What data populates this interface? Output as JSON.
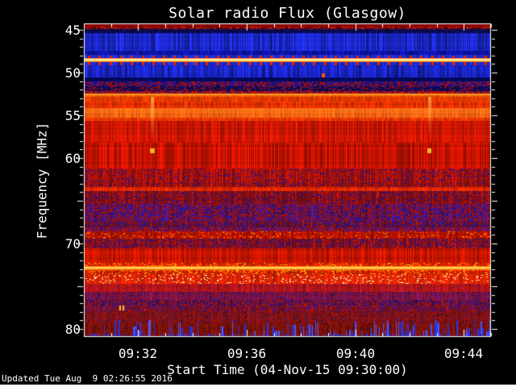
{
  "footer": "Updated Tue Aug  9 02:26:55 2016",
  "chart_data": {
    "type": "heatmap",
    "subtype": "radio-spectrogram",
    "title": "Solar radio Flux (Glasgow)",
    "x_axis": {
      "label": "Start Time (04-Nov-15 09:30:00)",
      "start": "09:30",
      "end": "09:45",
      "minutes_span": 15,
      "ticks": [
        {
          "label": "09:32",
          "t": 2
        },
        {
          "label": "09:36",
          "t": 6
        },
        {
          "label": "09:40",
          "t": 10
        },
        {
          "label": "09:44",
          "t": 14
        }
      ],
      "minor_step_min": 1,
      "major_ts": [
        2,
        6,
        10,
        14
      ]
    },
    "y_axis": {
      "label": "Frequency [MHz]",
      "freq_top": 44.25,
      "freq_bottom": 80.95,
      "labeled_ticks": [
        {
          "label": "45",
          "f": 45
        },
        {
          "label": "50",
          "f": 50
        },
        {
          "label": "55",
          "f": 55
        },
        {
          "label": "60",
          "f": 60
        },
        {
          "label": "70",
          "f": 70
        },
        {
          "label": "80",
          "f": 80
        }
      ],
      "major_step": 5,
      "minor_step": 1
    },
    "colors": {
      "background": "#000000",
      "axis": "#ffffff",
      "text": "#ffffff"
    },
    "seed": 1337,
    "bands": [
      {
        "f0": 44.25,
        "f1": 44.95,
        "c": "#6e0202",
        "n": 0.3,
        "sp": "#cc2200",
        "sd": 0.18
      },
      {
        "f0": 44.95,
        "f1": 45.35,
        "c": "#0a0a50",
        "n": 0.3
      },
      {
        "f0": 45.35,
        "f1": 47.45,
        "c": "#1c28d0",
        "n": 0.4,
        "rv": 0.18
      },
      {
        "f0": 47.45,
        "f1": 47.95,
        "c": "#0d14a8",
        "n": 0.35
      },
      {
        "f0": 47.95,
        "f1": 48.3,
        "c": "#1c28d0",
        "n": 0.35
      },
      {
        "f0": 48.3,
        "f1": 48.68,
        "c": "#ff8800",
        "n": 0.15
      },
      {
        "f0": 48.68,
        "f1": 49.15,
        "c": "#1c28d0",
        "n": 0.35
      },
      {
        "f0": 49.15,
        "f1": 50.55,
        "c": "#1a24c4",
        "n": 0.4,
        "rv": 0.18
      },
      {
        "f0": 50.55,
        "f1": 51.05,
        "c": "#000a60",
        "n": 0.3
      },
      {
        "f0": 51.05,
        "f1": 51.65,
        "c": "#1d0f80",
        "n": 0.3,
        "sp": "#b01000",
        "sd": 0.22
      },
      {
        "f0": 51.65,
        "f1": 52.15,
        "c": "#0c0a5a",
        "n": 0.3,
        "sp": "#b01000",
        "sd": 0.12
      },
      {
        "f0": 52.15,
        "f1": 52.45,
        "c": "#43105e",
        "n": 0.3,
        "sp": "#cc1100",
        "sd": 0.4
      },
      {
        "f0": 52.45,
        "f1": 52.8,
        "c": "#f06000",
        "n": 0.18
      },
      {
        "f0": 52.8,
        "f1": 53.4,
        "c": "#e83a00",
        "n": 0.2
      },
      {
        "f0": 53.4,
        "f1": 54.2,
        "c": "#dd2e00",
        "n": 0.22
      },
      {
        "f0": 54.2,
        "f1": 55.25,
        "c": "#ff6212",
        "n": 0.2,
        "rv": 0.15
      },
      {
        "f0": 55.25,
        "f1": 55.65,
        "c": "#e83600",
        "n": 0.22
      },
      {
        "f0": 55.65,
        "f1": 58.2,
        "c": "#cc1602",
        "n": 0.26,
        "rv": 0.12
      },
      {
        "f0": 58.2,
        "f1": 61.2,
        "c": "#c01200",
        "n": 0.3,
        "rv": 0.12
      },
      {
        "f0": 61.2,
        "f1": 63.4,
        "c": "#a81000",
        "n": 0.3,
        "sp": "#3a1070",
        "sd": 0.13
      },
      {
        "f0": 63.4,
        "f1": 63.9,
        "c": "#e22800",
        "n": 0.25
      },
      {
        "f0": 63.9,
        "f1": 65.4,
        "c": "#9c0e00",
        "n": 0.3,
        "sp": "#35106e",
        "sd": 0.2
      },
      {
        "f0": 65.4,
        "f1": 67.4,
        "c": "#2a1394",
        "n": 0.32,
        "sp": "#a81000",
        "sd": 0.3
      },
      {
        "f0": 67.4,
        "f1": 68.1,
        "c": "#8c1002",
        "n": 0.3,
        "sp": "#2a1390",
        "sd": 0.3
      },
      {
        "f0": 68.1,
        "f1": 68.6,
        "c": "#4a1278",
        "n": 0.3,
        "sp": "#b01200",
        "sd": 0.3
      },
      {
        "f0": 68.6,
        "f1": 69.4,
        "c": "#b01200",
        "n": 0.3,
        "sp": "#ff7700",
        "sd": 0.05
      },
      {
        "f0": 69.4,
        "f1": 70.6,
        "c": "#a01000",
        "n": 0.3,
        "sp": "#3a1070",
        "sd": 0.25
      },
      {
        "f0": 70.6,
        "f1": 72.3,
        "c": "#c41500",
        "n": 0.26,
        "rv": 0.12
      },
      {
        "f0": 72.3,
        "f1": 72.65,
        "c": "#d42000",
        "n": 0.25,
        "sp": "#ffaa00",
        "sd": 0.08
      },
      {
        "f0": 72.65,
        "f1": 73.1,
        "c": "#ff9900",
        "n": 0.15
      },
      {
        "f0": 73.1,
        "f1": 73.55,
        "c": "#d42000",
        "n": 0.25,
        "sp": "#ffaa00",
        "sd": 0.08
      },
      {
        "f0": 73.55,
        "f1": 74.7,
        "c": "#dd2404",
        "n": 0.26,
        "sp": "#ffeeb0",
        "sd": 0.05
      },
      {
        "f0": 74.7,
        "f1": 75.7,
        "c": "#a0142a",
        "n": 0.28,
        "sp": "#c41500",
        "sd": 0.2
      },
      {
        "f0": 75.7,
        "f1": 76.6,
        "c": "#5c1356",
        "n": 0.3,
        "sp": "#a01020",
        "sd": 0.2
      },
      {
        "f0": 76.6,
        "f1": 77.4,
        "c": "#3c1168",
        "n": 0.3,
        "sp": "#b01200",
        "sd": 0.22
      },
      {
        "f0": 77.4,
        "f1": 77.95,
        "c": "#901002",
        "n": 0.3,
        "sp": "#4a1278",
        "sd": 0.28
      },
      {
        "f0": 77.95,
        "f1": 79.3,
        "c": "#58122e",
        "n": 0.3,
        "sp": "#a01000",
        "sd": 0.3
      },
      {
        "f0": 79.3,
        "f1": 80.95,
        "c": "#70100e",
        "n": 0.32,
        "sp": "#901400",
        "sd": 0.2
      }
    ],
    "tick_rows": [
      {
        "f0": 47.98,
        "f1": 48.34,
        "c": "#e02200",
        "spacing": 13.3,
        "w": 3,
        "ph": 5
      },
      {
        "f0": 48.66,
        "f1": 49.12,
        "c": "#e02200",
        "spacing": 13.3,
        "w": 3,
        "ph": 5
      },
      {
        "f0": 44.32,
        "f1": 44.62,
        "c": "#cc1100",
        "spacing": 26,
        "w": 4,
        "ph": 12
      }
    ],
    "hlines": [
      {
        "f0": 44.3,
        "f1": 44.55,
        "c": "#8a0606",
        "a": 0.9
      },
      {
        "f0": 48.26,
        "f1": 48.7,
        "c": "#ff7700",
        "a": 0.85
      },
      {
        "f0": 48.36,
        "f1": 48.6,
        "c": "#ffdd66",
        "a": 1
      },
      {
        "f0": 48.42,
        "f1": 48.54,
        "c": "#fffff2",
        "a": 1
      },
      {
        "f0": 52.5,
        "f1": 52.72,
        "c": "#ff9922",
        "a": 0.9
      },
      {
        "f0": 54.35,
        "f1": 54.75,
        "c": "#ff7a1a",
        "a": 0.5
      },
      {
        "f0": 72.68,
        "f1": 73.06,
        "c": "#ff7700",
        "a": 0.9
      },
      {
        "f0": 72.76,
        "f1": 72.98,
        "c": "#ffcc44",
        "a": 1
      },
      {
        "f0": 72.82,
        "f1": 72.92,
        "c": "#ffe79a",
        "a": 1
      }
    ],
    "streaks": [
      {
        "t": 2.53,
        "f0": 52.85,
        "f1": 57.9,
        "c": "255,190,80",
        "a0": 0.75,
        "a1": 0,
        "w": 4
      },
      {
        "t": 12.74,
        "f0": 52.85,
        "f1": 57.4,
        "c": "255,190,80",
        "a0": 0.7,
        "a1": 0,
        "w": 4
      },
      {
        "t": 2.53,
        "f0": 44.95,
        "f1": 47.5,
        "c": "10,10,70",
        "a0": 0.4,
        "a1": 0.25,
        "w": 5
      },
      {
        "t": 12.74,
        "f0": 44.95,
        "f1": 47.5,
        "c": "10,10,70",
        "a0": 0.4,
        "a1": 0.25,
        "w": 5
      }
    ],
    "blobs": [
      {
        "t": 2.53,
        "f": 59.2,
        "wpx": 6,
        "hpx": 6,
        "c": "#ffaa22"
      },
      {
        "t": 12.74,
        "f": 59.2,
        "wpx": 5,
        "hpx": 6,
        "c": "#ffb22a"
      },
      {
        "t": 8.82,
        "f": 50.35,
        "wpx": 4,
        "hpx": 5,
        "c": "#ff5511"
      },
      {
        "t": 1.33,
        "f": 77.6,
        "wpx": 2,
        "hpx": 6,
        "c": "#ffcc22"
      },
      {
        "t": 1.45,
        "f": 77.6,
        "wpx": 2,
        "hpx": 6,
        "c": "#ffcc22"
      }
    ],
    "bottom_streaks": {
      "count": 110,
      "extra_short": 130,
      "c1": "#2535e8",
      "c2": "#4b58ff",
      "min_h": 5,
      "max_h": 20
    }
  }
}
